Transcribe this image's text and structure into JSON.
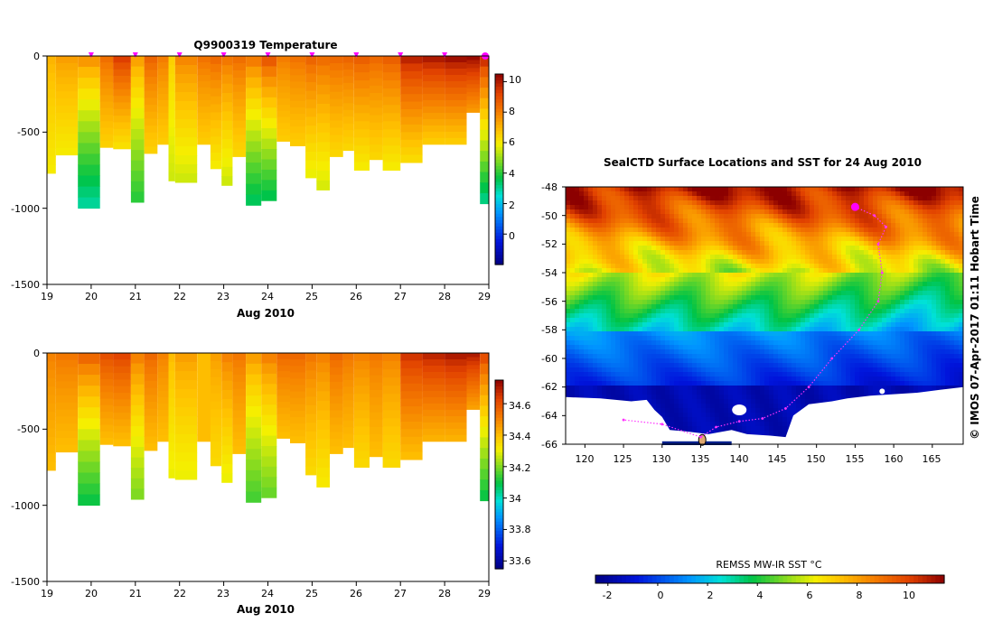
{
  "chart_data": [
    {
      "id": "temperature_section",
      "type": "heatmap",
      "title": "Q9900319  Temperature",
      "xlabel": "Aug 2010",
      "ylabel": "",
      "x_ticks": [
        "19",
        "20",
        "21",
        "22",
        "23",
        "24",
        "25",
        "26",
        "27",
        "28",
        "29"
      ],
      "y_ticks": [
        "0",
        "-500",
        "-1000",
        "-1500"
      ],
      "xlim": [
        19,
        29
      ],
      "ylim": [
        -1500,
        0
      ],
      "colorbar": {
        "ticks": [
          "10",
          "8",
          "6",
          "4",
          "2",
          "0"
        ],
        "tick_values": [
          10,
          8,
          6,
          4,
          2,
          0
        ],
        "range": [
          -2,
          10.5
        ]
      },
      "surface_markers": [
        20.0,
        21.0,
        22.0,
        23.0,
        24.0,
        25.0,
        26.0,
        27.0,
        28.0,
        29.0
      ],
      "profiles": [
        {
          "day": 19.0,
          "max_depth": 770,
          "surface": 7.0,
          "bottom": 6.0
        },
        {
          "day": 19.2,
          "max_depth": 650,
          "surface": 7.4,
          "bottom": 6.0
        },
        {
          "day": 19.7,
          "max_depth": 1000,
          "surface": 7.5,
          "bottom": 3.0
        },
        {
          "day": 20.2,
          "max_depth": 600,
          "surface": 8.3,
          "bottom": 6.5
        },
        {
          "day": 20.5,
          "max_depth": 610,
          "surface": 9.3,
          "bottom": 6.2
        },
        {
          "day": 20.9,
          "max_depth": 960,
          "surface": 7.3,
          "bottom": 4.0
        },
        {
          "day": 21.2,
          "max_depth": 640,
          "surface": 8.5,
          "bottom": 6.5
        },
        {
          "day": 21.5,
          "max_depth": 580,
          "surface": 8.0,
          "bottom": 6.6
        },
        {
          "day": 21.75,
          "max_depth": 820,
          "surface": 6.5,
          "bottom": 5.5
        },
        {
          "day": 21.9,
          "max_depth": 830,
          "surface": 7.8,
          "bottom": 5.5
        },
        {
          "day": 22.4,
          "max_depth": 580,
          "surface": 8.2,
          "bottom": 6.6
        },
        {
          "day": 22.7,
          "max_depth": 740,
          "surface": 8.4,
          "bottom": 6.0
        },
        {
          "day": 22.95,
          "max_depth": 850,
          "surface": 8.1,
          "bottom": 5.5
        },
        {
          "day": 23.2,
          "max_depth": 660,
          "surface": 8.3,
          "bottom": 6.4
        },
        {
          "day": 23.5,
          "max_depth": 980,
          "surface": 8.0,
          "bottom": 3.5
        },
        {
          "day": 23.85,
          "max_depth": 950,
          "surface": 8.7,
          "bottom": 3.6
        },
        {
          "day": 24.2,
          "max_depth": 560,
          "surface": 8.0,
          "bottom": 6.6
        },
        {
          "day": 24.5,
          "max_depth": 590,
          "surface": 8.2,
          "bottom": 6.6
        },
        {
          "day": 24.85,
          "max_depth": 800,
          "surface": 8.5,
          "bottom": 5.8
        },
        {
          "day": 25.1,
          "max_depth": 880,
          "surface": 8.3,
          "bottom": 5.6
        },
        {
          "day": 25.4,
          "max_depth": 660,
          "surface": 8.4,
          "bottom": 6.4
        },
        {
          "day": 25.7,
          "max_depth": 620,
          "surface": 8.5,
          "bottom": 6.4
        },
        {
          "day": 25.95,
          "max_depth": 750,
          "surface": 8.6,
          "bottom": 6.0
        },
        {
          "day": 26.3,
          "max_depth": 680,
          "surface": 8.4,
          "bottom": 6.4
        },
        {
          "day": 26.6,
          "max_depth": 750,
          "surface": 8.6,
          "bottom": 6.0
        },
        {
          "day": 27.0,
          "max_depth": 700,
          "surface": 9.8,
          "bottom": 6.3
        },
        {
          "day": 27.5,
          "max_depth": 580,
          "surface": 10.0,
          "bottom": 6.6
        },
        {
          "day": 28.0,
          "max_depth": 580,
          "surface": 10.2,
          "bottom": 6.6
        },
        {
          "day": 28.5,
          "max_depth": 370,
          "surface": 10.3,
          "bottom": 7.5
        },
        {
          "day": 28.8,
          "max_depth": 970,
          "surface": 9.5,
          "bottom": 3.2
        }
      ]
    },
    {
      "id": "salinity_section",
      "type": "heatmap",
      "title": "",
      "xlabel": "Aug 2010",
      "ylabel": "",
      "x_ticks": [
        "19",
        "20",
        "21",
        "22",
        "23",
        "24",
        "25",
        "26",
        "27",
        "28",
        "29"
      ],
      "y_ticks": [
        "0",
        "-500",
        "-1000",
        "-1500"
      ],
      "xlim": [
        19,
        29
      ],
      "ylim": [
        -1500,
        0
      ],
      "colorbar": {
        "ticks": [
          "34.6",
          "34.4",
          "34.2",
          "34",
          "33.8",
          "33.6"
        ],
        "tick_values": [
          34.6,
          34.4,
          34.2,
          34.0,
          33.8,
          33.6
        ],
        "range": [
          33.55,
          34.75
        ]
      },
      "profiles": [
        {
          "day": 19.0,
          "max_depth": 770,
          "surface": 34.5,
          "bottom": 34.4
        },
        {
          "day": 19.2,
          "max_depth": 650,
          "surface": 34.52,
          "bottom": 34.4
        },
        {
          "day": 19.7,
          "max_depth": 1000,
          "surface": 34.55,
          "bottom": 34.1
        },
        {
          "day": 20.2,
          "max_depth": 600,
          "surface": 34.6,
          "bottom": 34.4
        },
        {
          "day": 20.5,
          "max_depth": 610,
          "surface": 34.62,
          "bottom": 34.4
        },
        {
          "day": 20.9,
          "max_depth": 960,
          "surface": 34.5,
          "bottom": 34.2
        },
        {
          "day": 21.2,
          "max_depth": 640,
          "surface": 34.55,
          "bottom": 34.4
        },
        {
          "day": 21.5,
          "max_depth": 580,
          "surface": 34.5,
          "bottom": 34.4
        },
        {
          "day": 21.75,
          "max_depth": 820,
          "surface": 34.4,
          "bottom": 34.3
        },
        {
          "day": 21.9,
          "max_depth": 830,
          "surface": 34.45,
          "bottom": 34.3
        },
        {
          "day": 22.4,
          "max_depth": 580,
          "surface": 34.4,
          "bottom": 34.4
        },
        {
          "day": 22.7,
          "max_depth": 740,
          "surface": 34.45,
          "bottom": 34.35
        },
        {
          "day": 22.95,
          "max_depth": 850,
          "surface": 34.5,
          "bottom": 34.3
        },
        {
          "day": 23.2,
          "max_depth": 660,
          "surface": 34.52,
          "bottom": 34.4
        },
        {
          "day": 23.5,
          "max_depth": 980,
          "surface": 34.45,
          "bottom": 34.15
        },
        {
          "day": 23.85,
          "max_depth": 950,
          "surface": 34.5,
          "bottom": 34.18
        },
        {
          "day": 24.2,
          "max_depth": 560,
          "surface": 34.55,
          "bottom": 34.4
        },
        {
          "day": 24.5,
          "max_depth": 590,
          "surface": 34.55,
          "bottom": 34.4
        },
        {
          "day": 24.85,
          "max_depth": 800,
          "surface": 34.52,
          "bottom": 34.35
        },
        {
          "day": 25.1,
          "max_depth": 880,
          "surface": 34.5,
          "bottom": 34.32
        },
        {
          "day": 25.4,
          "max_depth": 660,
          "surface": 34.55,
          "bottom": 34.4
        },
        {
          "day": 25.7,
          "max_depth": 620,
          "surface": 34.52,
          "bottom": 34.4
        },
        {
          "day": 25.95,
          "max_depth": 750,
          "surface": 34.5,
          "bottom": 34.35
        },
        {
          "day": 26.3,
          "max_depth": 680,
          "surface": 34.52,
          "bottom": 34.4
        },
        {
          "day": 26.6,
          "max_depth": 750,
          "surface": 34.5,
          "bottom": 34.35
        },
        {
          "day": 27.0,
          "max_depth": 700,
          "surface": 34.65,
          "bottom": 34.4
        },
        {
          "day": 27.5,
          "max_depth": 580,
          "surface": 34.68,
          "bottom": 34.42
        },
        {
          "day": 28.0,
          "max_depth": 580,
          "surface": 34.7,
          "bottom": 34.42
        },
        {
          "day": 28.5,
          "max_depth": 370,
          "surface": 34.7,
          "bottom": 34.45
        },
        {
          "day": 28.8,
          "max_depth": 970,
          "surface": 34.6,
          "bottom": 34.1
        }
      ]
    },
    {
      "id": "sst_map",
      "type": "heatmap",
      "title": "SealCTD Surface Locations and SST for 24 Aug 2010",
      "xlabel": "",
      "ylabel": "",
      "x_ticks": [
        "120",
        "125",
        "130",
        "135",
        "140",
        "145",
        "150",
        "155",
        "160",
        "165"
      ],
      "y_ticks": [
        "-48",
        "-50",
        "-52",
        "-54",
        "-56",
        "-58",
        "-60",
        "-62",
        "-64",
        "-66"
      ],
      "xlim": [
        117.5,
        169
      ],
      "ylim": [
        -66,
        -48
      ],
      "side_label": "© IMOS 07-Apr-2017 01:11 Hobart Time",
      "colorbar": {
        "title": "REMSS MW-IR SST °C",
        "ticks": [
          "-2",
          "0",
          "2",
          "4",
          "6",
          "8",
          "10"
        ],
        "tick_values": [
          -2,
          0,
          2,
          4,
          6,
          8,
          10
        ],
        "range": [
          -2.5,
          11.5
        ]
      },
      "current_location": {
        "lon": 155.0,
        "lat": -49.4
      },
      "track": [
        {
          "lon": 155.0,
          "lat": -49.4
        },
        {
          "lon": 157.5,
          "lat": -50.0
        },
        {
          "lon": 159.0,
          "lat": -50.8
        },
        {
          "lon": 158.0,
          "lat": -52.0
        },
        {
          "lon": 158.5,
          "lat": -54.0
        },
        {
          "lon": 158.0,
          "lat": -56.0
        },
        {
          "lon": 155.5,
          "lat": -58.0
        },
        {
          "lon": 152.0,
          "lat": -60.0
        },
        {
          "lon": 149.0,
          "lat": -62.0
        },
        {
          "lon": 146.0,
          "lat": -63.5
        },
        {
          "lon": 143.0,
          "lat": -64.2
        },
        {
          "lon": 140.0,
          "lat": -64.4
        },
        {
          "lon": 137.0,
          "lat": -64.8
        },
        {
          "lon": 135.0,
          "lat": -65.5
        },
        {
          "lon": 130.0,
          "lat": -64.6
        },
        {
          "lon": 125.0,
          "lat": -64.3
        }
      ]
    }
  ],
  "colors": {
    "marker": "#ff00ff",
    "track": "#ff33ff",
    "land": "#ffffff"
  }
}
